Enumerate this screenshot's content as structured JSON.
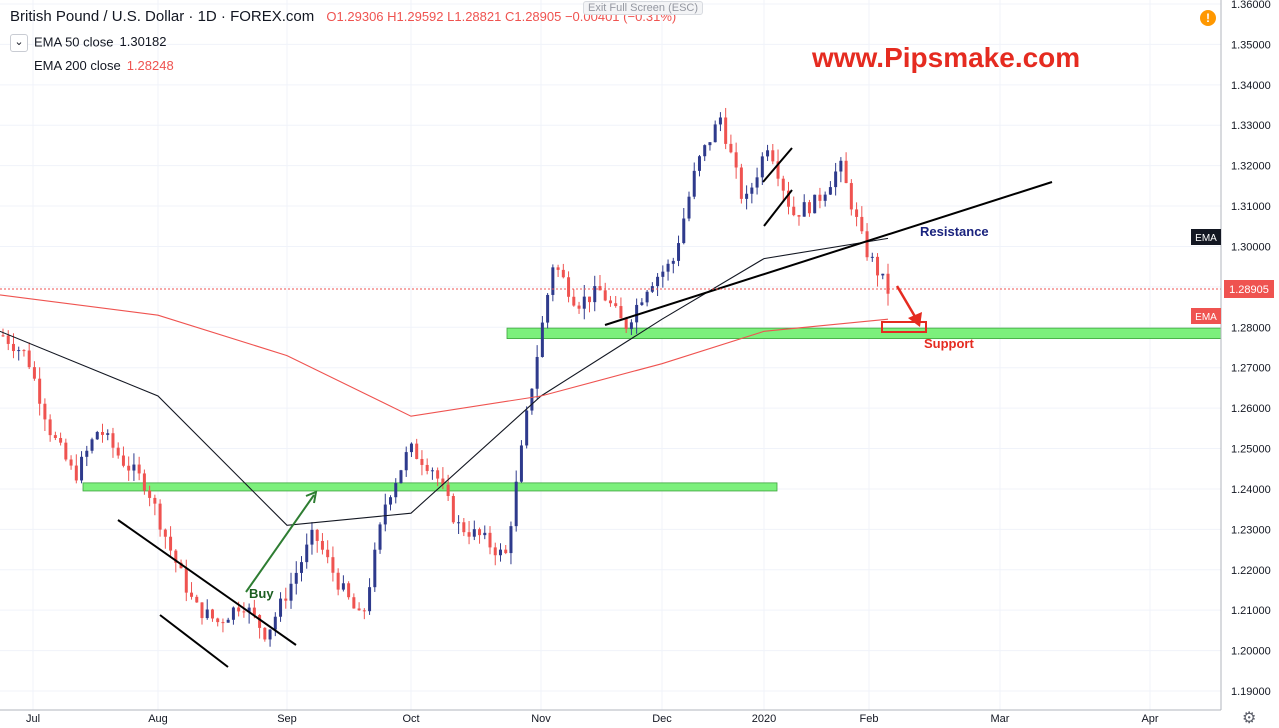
{
  "header": {
    "title": "British Pound / U.S. Dollar · 1D · FOREX.com",
    "ohlc": "O1.29306 H1.29592 L1.28821 C1.28905 −0.00401 (−0.31%)",
    "collapse_glyph": "⌄",
    "exit_fullscreen": "Exit Full Screen (ESC)"
  },
  "indicators": [
    {
      "label": "EMA 50 close",
      "value": "1.30182",
      "color": "#131722"
    },
    {
      "label": "EMA 200 close",
      "value": "1.28248",
      "color": "#ef5350"
    }
  ],
  "watermark": "www.Pipsmake.com",
  "annotations": {
    "buy": "Buy",
    "resistance": "Resistance",
    "support": "Support"
  },
  "price_axis": {
    "ticks": [
      "1.36000",
      "1.35000",
      "1.34000",
      "1.33000",
      "1.32000",
      "1.31000",
      "1.30000",
      "1.29000",
      "1.28000",
      "1.27000",
      "1.26000",
      "1.25000",
      "1.24000",
      "1.23000",
      "1.22000",
      "1.21000",
      "1.20000",
      "1.19000"
    ],
    "last_price_label": "1.28905",
    "ema_labels": [
      "EMA",
      "EMA"
    ]
  },
  "time_axis": {
    "ticks": [
      "Jul",
      "Aug",
      "Sep",
      "Oct",
      "Nov",
      "Dec",
      "2020",
      "Feb",
      "Mar",
      "Apr"
    ]
  },
  "icons": {
    "alert": "alert-icon",
    "settings": "gear-icon"
  },
  "colors": {
    "up": "#2e3a8c",
    "down": "#ef5350",
    "ema50": "#131722",
    "ema200": "#ef5350",
    "zone": "#7cf07c",
    "watermark": "#e52b20"
  },
  "chart_data": {
    "type": "candlestick",
    "symbol": "GBPUSD",
    "timeframe": "1D",
    "ylim": [
      1.187,
      1.361
    ],
    "series": [
      {
        "name": "EMA 50 close",
        "points": [
          [
            "Jul",
            1.279
          ],
          [
            "Aug",
            1.263
          ],
          [
            "Sep",
            1.231
          ],
          [
            "Oct",
            1.234
          ],
          [
            "Nov",
            1.263
          ],
          [
            "Dec",
            1.282
          ],
          [
            "2020",
            1.297
          ],
          [
            "Feb",
            1.302
          ]
        ]
      },
      {
        "name": "EMA 200 close",
        "points": [
          [
            "Jul",
            1.288
          ],
          [
            "Aug",
            1.283
          ],
          [
            "Sep",
            1.273
          ],
          [
            "Oct",
            1.258
          ],
          [
            "Nov",
            1.263
          ],
          [
            "Dec",
            1.271
          ],
          [
            "2020",
            1.279
          ],
          [
            "Feb",
            1.282
          ]
        ]
      }
    ],
    "price_path": [
      [
        "Jul",
        1.278
      ],
      [
        "Jul",
        1.273
      ],
      [
        "Jul",
        1.254
      ],
      [
        "Jul",
        1.243
      ],
      [
        "Jul",
        1.255
      ],
      [
        "Jul",
        1.247
      ],
      [
        "Jul",
        1.241
      ],
      [
        "Aug",
        1.225
      ],
      [
        "Aug",
        1.211
      ],
      [
        "Aug",
        1.207
      ],
      [
        "Aug",
        1.212
      ],
      [
        "Aug",
        1.204
      ],
      [
        "Aug",
        1.216
      ],
      [
        "Sep",
        1.229
      ],
      [
        "Sep",
        1.217
      ],
      [
        "Sep",
        1.207
      ],
      [
        "Sep",
        1.237
      ],
      [
        "Sep",
        1.25
      ],
      [
        "Sep",
        1.245
      ],
      [
        "Oct",
        1.231
      ],
      [
        "Oct",
        1.228
      ],
      [
        "Oct",
        1.223
      ],
      [
        "Oct",
        1.262
      ],
      [
        "Oct",
        1.296
      ],
      [
        "Nov",
        1.286
      ],
      [
        "Nov",
        1.289
      ],
      [
        "Nov",
        1.28
      ],
      [
        "Nov",
        1.291
      ],
      [
        "Dec",
        1.296
      ],
      [
        "Dec",
        1.32
      ],
      [
        "Dec",
        1.332
      ],
      [
        "Dec",
        1.31
      ],
      [
        "2020",
        1.326
      ],
      [
        "2020",
        1.308
      ],
      [
        "2020",
        1.311
      ],
      [
        "Feb",
        1.32
      ],
      [
        "Feb",
        1.3
      ],
      [
        "Feb",
        1.28905
      ]
    ],
    "zones": [
      {
        "label": "Support",
        "low": 1.2772,
        "high": 1.2798,
        "from": "Nov",
        "to": "Apr"
      },
      {
        "label": "",
        "low": 1.2395,
        "high": 1.2415,
        "from": "Jul",
        "to": "Dec"
      }
    ]
  }
}
